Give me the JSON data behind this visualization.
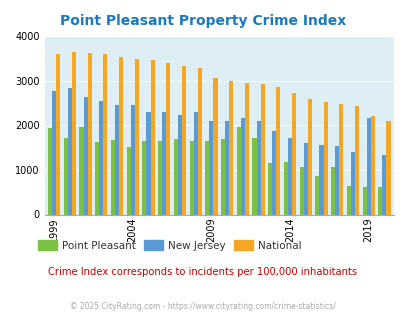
{
  "title": "Point Pleasant Property Crime Index",
  "title_color": "#1a7abf",
  "years": [
    1999,
    2000,
    2001,
    2002,
    2003,
    2004,
    2005,
    2006,
    2007,
    2008,
    2009,
    2010,
    2011,
    2012,
    2013,
    2014,
    2015,
    2016,
    2017,
    2018,
    2019,
    2020
  ],
  "point_pleasant": [
    1950,
    1720,
    1960,
    1620,
    1670,
    1510,
    1640,
    1640,
    1700,
    1650,
    1650,
    1700,
    1960,
    1720,
    1150,
    1170,
    1060,
    870,
    1070,
    630,
    620,
    610
  ],
  "new_jersey": [
    2780,
    2850,
    2640,
    2550,
    2460,
    2460,
    2310,
    2300,
    2240,
    2300,
    2100,
    2100,
    2160,
    2090,
    1880,
    1720,
    1600,
    1550,
    1530,
    1410,
    2170,
    1340
  ],
  "national": [
    3610,
    3650,
    3620,
    3600,
    3530,
    3490,
    3460,
    3390,
    3340,
    3290,
    3060,
    3000,
    2960,
    2920,
    2870,
    2730,
    2600,
    2520,
    2470,
    2440,
    2200,
    2100
  ],
  "bar_color_pp": "#7bc143",
  "bar_color_nj": "#5b9bd5",
  "bar_color_nat": "#f5a623",
  "bg_color": "#ddeef5",
  "ylim": [
    0,
    4000
  ],
  "yticks": [
    0,
    1000,
    2000,
    3000,
    4000
  ],
  "xlabel_ticks": [
    1999,
    2004,
    2009,
    2014,
    2019
  ],
  "legend_labels": [
    "Point Pleasant",
    "New Jersey",
    "National"
  ],
  "footnote": "Crime Index corresponds to incidents per 100,000 inhabitants",
  "copyright": "© 2025 CityRating.com - https://www.cityrating.com/crime-statistics/",
  "footnote_color": "#cc0000",
  "copyright_color": "#aaaaaa",
  "fig_width": 4.06,
  "fig_height": 3.3,
  "dpi": 100
}
